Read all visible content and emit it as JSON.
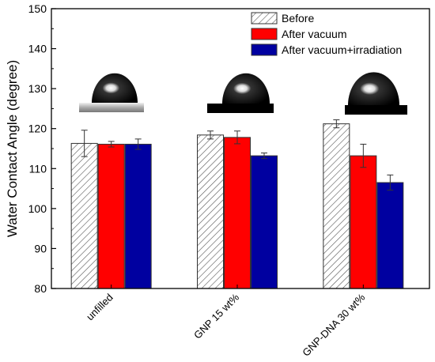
{
  "chart_data": {
    "type": "bar",
    "ylabel": "Water Contact Angle (degree)",
    "xlabel": "",
    "ylim": [
      80,
      150
    ],
    "yticks": [
      80,
      90,
      100,
      110,
      120,
      130,
      140,
      150
    ],
    "categories": [
      "unfilled",
      "GNP 15 wt%",
      "GNP-DNA 30 wt%"
    ],
    "series": [
      {
        "name": "Before",
        "color": "#ffffff",
        "pattern": "hatch",
        "values": [
          116.3,
          118.4,
          121.2
        ],
        "errors": [
          3.3,
          1.0,
          1.0
        ]
      },
      {
        "name": "After vacuum",
        "color": "#ff0000",
        "pattern": "solid",
        "values": [
          116.1,
          117.8,
          113.2
        ],
        "errors": [
          0.7,
          1.6,
          2.9
        ]
      },
      {
        "name": "After vacuum+irradiation",
        "color": "#0000a0",
        "pattern": "solid",
        "values": [
          116.1,
          113.2,
          106.5
        ],
        "errors": [
          1.3,
          0.7,
          1.9
        ]
      }
    ],
    "legend_position": "top-right",
    "grid": false,
    "inset_images": [
      "water-droplet-image-unfilled",
      "water-droplet-image-gnp",
      "water-droplet-image-gnp-dna"
    ]
  }
}
